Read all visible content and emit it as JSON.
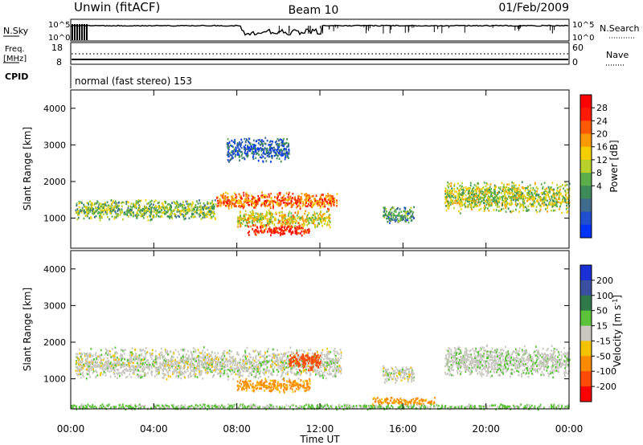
{
  "header": {
    "station": "Unwin (fitACF)",
    "beam": "Beam 10",
    "date": "01/Feb/2009"
  },
  "status_panels": {
    "nsky_label": "N.Sky",
    "nsky_ticks": [
      "10^5",
      "10^0"
    ],
    "nsearch_label": "N.Search",
    "nsearch_ticks": [
      "10^5",
      "10^0"
    ],
    "freq_label_1": "Freq.",
    "freq_label_2": "[MHz]",
    "freq_ticks": [
      "18",
      "8"
    ],
    "nave_label": "Nave",
    "nave_ticks": [
      "60",
      "0"
    ],
    "cpid_label": "CPID",
    "cpid_text": "normal (fast stereo) 153"
  },
  "x_axis": {
    "label": "Time UT",
    "ticks": [
      "00:00",
      "04:00",
      "08:00",
      "12:00",
      "16:00",
      "20:00",
      "00:00"
    ],
    "tick_hours": [
      0,
      4,
      8,
      12,
      16,
      20,
      24
    ]
  },
  "chart_data": [
    {
      "type": "heatmap",
      "title": "",
      "xlabel": "",
      "ylabel": "Slant Range [km]",
      "xlim": [
        0,
        24
      ],
      "ylim": [
        180,
        4500
      ],
      "y_ticks": [
        1000,
        2000,
        3000,
        4000
      ],
      "colorbar_label": "Power [dB]",
      "colorbar_ticks": [
        "28",
        "24",
        "20",
        "16",
        "12",
        "8",
        "4"
      ],
      "colorbar_colors": [
        "#0033ff",
        "#1f4fcf",
        "#3f6b8f",
        "#3d8a5a",
        "#5cae4a",
        "#b9cf2a",
        "#f4cf00",
        "#ff9a00",
        "#ff5a00",
        "#ff1a00",
        "#ff0000"
      ],
      "bands": [
        {
          "x_start": 0.2,
          "x_end": 7.0,
          "y_mid": 1250,
          "y_spread": 300,
          "value": 14
        },
        {
          "x_start": 7.0,
          "x_end": 12.8,
          "y_mid": 1500,
          "y_spread": 250,
          "value": 24
        },
        {
          "x_start": 8.0,
          "x_end": 12.5,
          "y_mid": 1000,
          "y_spread": 250,
          "value": 18
        },
        {
          "x_start": 8.5,
          "x_end": 11.5,
          "y_mid": 700,
          "y_spread": 150,
          "value": 28
        },
        {
          "x_start": 15.0,
          "x_end": 16.5,
          "y_mid": 1100,
          "y_spread": 250,
          "value": 10
        },
        {
          "x_start": 18.0,
          "x_end": 24.0,
          "y_mid": 1600,
          "y_spread": 450,
          "value": 16
        },
        {
          "x_start": 7.5,
          "x_end": 10.5,
          "y_mid": 2900,
          "y_spread": 350,
          "value": 6
        }
      ]
    },
    {
      "type": "heatmap",
      "title": "",
      "xlabel": "Time UT",
      "ylabel": "Slant Range [km]",
      "xlim": [
        0,
        24
      ],
      "ylim": [
        180,
        4500
      ],
      "y_ticks": [
        1000,
        2000,
        3000,
        4000
      ],
      "colorbar_label": "Velocity [m s^-1]",
      "colorbar_ticks": [
        "200",
        "100",
        "50",
        "15",
        "-15",
        "-50",
        "-100",
        "-200"
      ],
      "colorbar_colors": [
        "#1a2fd6",
        "#3a4fa0",
        "#2f7a4a",
        "#5cc23a",
        "#c8c8c0",
        "#f5c200",
        "#ff8a00",
        "#ff4a00",
        "#ff0000"
      ],
      "bands": [
        {
          "x_start": 0.2,
          "x_end": 13.0,
          "y_mid": 1450,
          "y_spread": 450,
          "value": 0
        },
        {
          "x_start": 8.0,
          "x_end": 11.5,
          "y_mid": 850,
          "y_spread": 200,
          "value": -60
        },
        {
          "x_start": 10.5,
          "x_end": 12.0,
          "y_mid": 1500,
          "y_spread": 250,
          "value": -150
        },
        {
          "x_start": 15.0,
          "x_end": 16.5,
          "y_mid": 1150,
          "y_spread": 250,
          "value": 0
        },
        {
          "x_start": 18.0,
          "x_end": 24.0,
          "y_mid": 1500,
          "y_spread": 450,
          "value": 5
        },
        {
          "x_start": 14.5,
          "x_end": 17.5,
          "y_mid": 400,
          "y_spread": 120,
          "value": -60
        },
        {
          "x_start": 0.0,
          "x_end": 24.0,
          "y_mid": 260,
          "y_spread": 80,
          "value": 20
        }
      ]
    }
  ]
}
